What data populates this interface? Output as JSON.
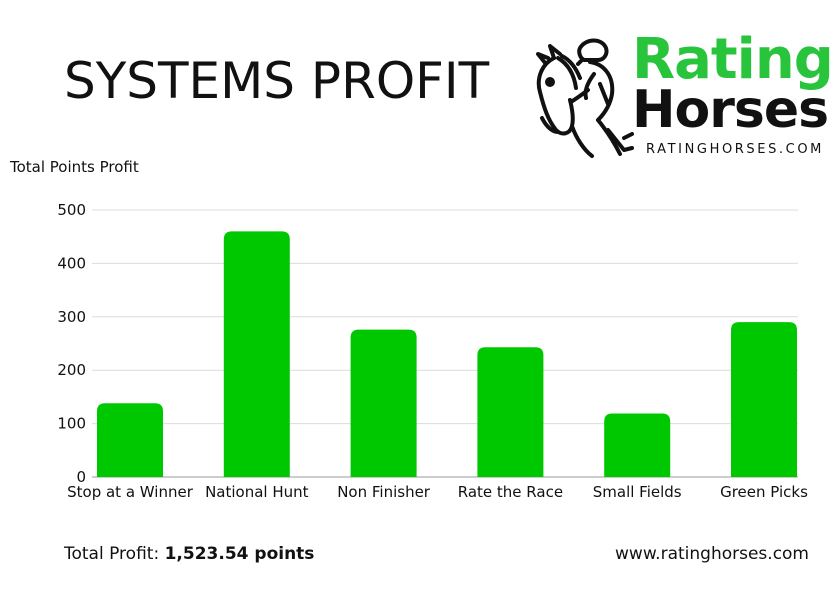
{
  "header": {
    "title": "SYSTEMS PROFIT"
  },
  "logo": {
    "word1": "Rating",
    "word2": "Horses",
    "url": "RATINGHORSES.COM",
    "icon": "horse-and-jockey-icon",
    "green": "#28c43c"
  },
  "footer": {
    "total_label": "Total Profit:",
    "total_value": "1,523.54 points",
    "website": "www.ratinghorses.com"
  },
  "chart_data": {
    "type": "bar",
    "title": "SYSTEMS PROFIT",
    "ylabel": "Total Points Profit",
    "xlabel": "",
    "categories": [
      "Stop at a Winner",
      "National Hunt",
      "Non Finisher",
      "Rate the Race",
      "Small Fields",
      "Green Picks"
    ],
    "values": [
      138,
      460,
      276,
      243,
      119,
      290
    ],
    "ylim": [
      0,
      500
    ],
    "yticks": [
      0,
      100,
      200,
      300,
      400,
      500
    ],
    "grid": true,
    "bar_color": "#00c800"
  }
}
